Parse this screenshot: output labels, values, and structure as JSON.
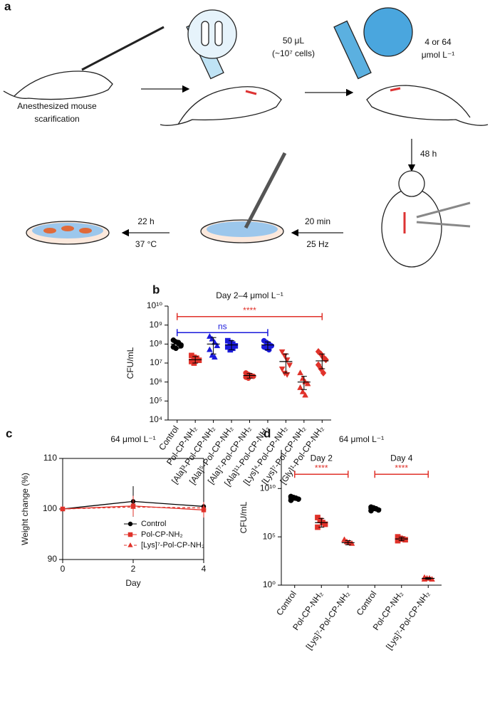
{
  "schematic": {
    "panel": "a",
    "step1": [
      "Anesthesized mouse",
      "scarification"
    ],
    "dose_bacteria": [
      "50 μL",
      "(~10⁷ cells)"
    ],
    "dose_peptide": [
      "4 or 64",
      "μmol L⁻¹"
    ],
    "wait": "48 h",
    "homogenize": [
      "20 min",
      "25 Hz"
    ],
    "incubate": [
      "22 h",
      "37 °C"
    ]
  },
  "chart_data": [
    {
      "type": "dot",
      "panel": "b",
      "title": "Day 2–4 μmol L⁻¹",
      "y_label": "CFU/mL",
      "log_y": true,
      "ylim": [
        10000,
        10000000000
      ],
      "yticks": [
        {
          "value": 10000,
          "label": "10⁴"
        },
        {
          "value": 100000,
          "label": "10⁵"
        },
        {
          "value": 1000000,
          "label": "10⁶"
        },
        {
          "value": 10000000,
          "label": "10⁷"
        },
        {
          "value": 100000000,
          "label": "10⁸"
        },
        {
          "value": 1000000000,
          "label": "10⁹"
        },
        {
          "value": 10000000000,
          "label": "10¹⁰"
        }
      ],
      "categories": [
        "Control",
        "Pol-CP-NH₂",
        "[Ala]³-Pol-CP-NH₂",
        "[Ala]⁵-Pol-CP-NH₂",
        "[Ala]⁷-Pol-CP-NH₂",
        "[Ala]¹¹-Pol-CP-NH₂",
        "[Lys]⁴-Pol-CP-NH₂",
        "[Lys]⁷-Pol-CP-NH₂",
        "[Gly]¹-Pol-CP-NH₂"
      ],
      "groups": [
        {
          "color": "#000000",
          "marker": "circle",
          "values": [
            160000000,
            130000000,
            110000000,
            90000000,
            70000000,
            60000000,
            120000000,
            80000000
          ],
          "mean": 100000000,
          "whisker": [
            60000000,
            150000000
          ]
        },
        {
          "color": "#e0322a",
          "marker": "square",
          "values": [
            25000000,
            20000000,
            17000000,
            14000000,
            12000000,
            10000000,
            18000000
          ],
          "mean": 15000000,
          "whisker": [
            10000000,
            22000000
          ]
        },
        {
          "color": "#1a1adb",
          "marker": "triangle",
          "values": [
            250000000,
            180000000,
            120000000,
            80000000,
            50000000,
            25000000,
            20000000
          ],
          "mean": 100000000,
          "whisker": [
            30000000,
            220000000
          ]
        },
        {
          "color": "#1a1adb",
          "marker": "square",
          "values": [
            150000000,
            120000000,
            100000000,
            80000000,
            70000000,
            50000000,
            60000000
          ],
          "mean": 90000000,
          "whisker": [
            50000000,
            150000000
          ]
        },
        {
          "color": "#e0322a",
          "marker": "circle",
          "values": [
            3000000,
            2500000,
            2200000,
            2000000,
            1800000,
            1600000
          ],
          "mean": 2200000,
          "whisker": [
            1600000,
            2800000
          ]
        },
        {
          "color": "#1a1adb",
          "marker": "circle",
          "values": [
            150000000,
            120000000,
            100000000,
            80000000,
            70000000,
            60000000,
            50000000
          ],
          "mean": 90000000,
          "whisker": [
            50000000,
            130000000
          ]
        },
        {
          "color": "#e0322a",
          "marker": "triangle-down",
          "values": [
            40000000,
            25000000,
            15000000,
            8000000,
            5000000,
            3000000,
            2500000
          ],
          "mean": 12000000,
          "whisker": [
            3000000,
            30000000
          ]
        },
        {
          "color": "#e0322a",
          "marker": "triangle",
          "values": [
            3000000,
            1500000,
            1000000,
            800000,
            500000,
            300000,
            200000
          ],
          "mean": 1000000,
          "whisker": [
            400000,
            2000000
          ]
        },
        {
          "color": "#e0322a",
          "marker": "diamond",
          "values": [
            40000000,
            30000000,
            20000000,
            15000000,
            8000000,
            5000000,
            3000000
          ],
          "mean": 13000000,
          "whisker": [
            5000000,
            30000000
          ]
        }
      ],
      "brackets": [
        {
          "label": "****",
          "start": 0,
          "end": 8,
          "y": 2800000000,
          "color": "#e0322a"
        },
        {
          "label": "ns",
          "start": 0,
          "end": 5,
          "y": 400000000,
          "color": "#1a1adb"
        }
      ]
    },
    {
      "type": "line",
      "panel": "c",
      "title": "64 μmol L⁻¹",
      "x_label": "Day",
      "y_label": "Weight change (%)",
      "x": [
        0,
        2,
        4
      ],
      "xlim": [
        0,
        4
      ],
      "xticks": [
        0,
        2,
        4
      ],
      "ylim": [
        90,
        110
      ],
      "yticks": [
        90,
        100,
        110
      ],
      "legend": "lower right",
      "series": [
        {
          "name": "Control",
          "color": "#000000",
          "marker": "circle",
          "dashed": false,
          "values": [
            100,
            101.5,
            100.5
          ],
          "errors": [
            0,
            3,
            2.2
          ]
        },
        {
          "name": "Pol-CP-NH₂",
          "color": "#e0322a",
          "marker": "square",
          "dashed": false,
          "values": [
            100,
            100.6,
            99.8
          ],
          "errors": [
            0,
            2,
            1.5
          ]
        },
        {
          "name": "[Lys]⁷-Pol-CP-NH₂",
          "color": "#e0322a",
          "marker": "triangle",
          "dashed": true,
          "values": [
            100,
            100.4,
            100.2
          ],
          "errors": [
            0,
            1.5,
            1.2
          ]
        }
      ]
    },
    {
      "type": "dot",
      "panel": "d",
      "title": "64 μmol L⁻¹",
      "y_label": "CFU/mL",
      "log_y": true,
      "ylim": [
        1,
        100000000000000
      ],
      "yticks": [
        {
          "value": 1,
          "label": "10⁰"
        },
        {
          "value": 100000,
          "label": "10⁵"
        },
        {
          "value": 10000000000,
          "label": "10¹⁰"
        }
      ],
      "categories": [
        "Control",
        "Pol-CP-NH₂",
        "[Lys]⁷-Pol-CP-NH₂",
        "Control",
        "Pol-CP-NH₂",
        "[Lys]⁷-Pol-CP-NH₂"
      ],
      "groups": [
        {
          "color": "#000000",
          "marker": "circle",
          "values": [
            1500000000,
            1200000000,
            1000000000,
            800000000,
            600000000
          ],
          "mean": 1000000000,
          "whisker": [
            600000000,
            1400000000
          ]
        },
        {
          "color": "#e0322a",
          "marker": "square",
          "values": [
            10000000,
            5000000,
            3000000,
            2000000,
            1000000
          ],
          "mean": 3000000,
          "whisker": [
            1000000,
            8000000
          ]
        },
        {
          "color": "#e0322a",
          "marker": "triangle",
          "values": [
            50000,
            30000,
            25000,
            20000
          ],
          "mean": 25000,
          "whisker": [
            15000,
            40000
          ]
        },
        {
          "color": "#000000",
          "marker": "circle",
          "values": [
            120000000,
            100000000,
            80000000,
            60000000,
            50000000
          ],
          "mean": 80000000,
          "whisker": [
            50000000,
            120000000
          ]
        },
        {
          "color": "#e0322a",
          "marker": "square",
          "values": [
            100000,
            70000,
            60000,
            50000,
            40000
          ],
          "mean": 60000,
          "whisker": [
            40000,
            90000
          ]
        },
        {
          "color": "#e0322a",
          "marker": "triangle",
          "values": [
            6,
            5,
            5,
            4,
            4
          ],
          "mean": 5,
          "whisker": [
            4,
            6
          ]
        }
      ],
      "brackets": [
        {
          "label": "****",
          "group_label": "Day 2",
          "start": 0,
          "end": 2,
          "y": 300000000000,
          "color": "#e0322a"
        },
        {
          "label": "****",
          "group_label": "Day 4",
          "start": 3,
          "end": 5,
          "y": 300000000000,
          "color": "#e0322a"
        }
      ]
    }
  ]
}
